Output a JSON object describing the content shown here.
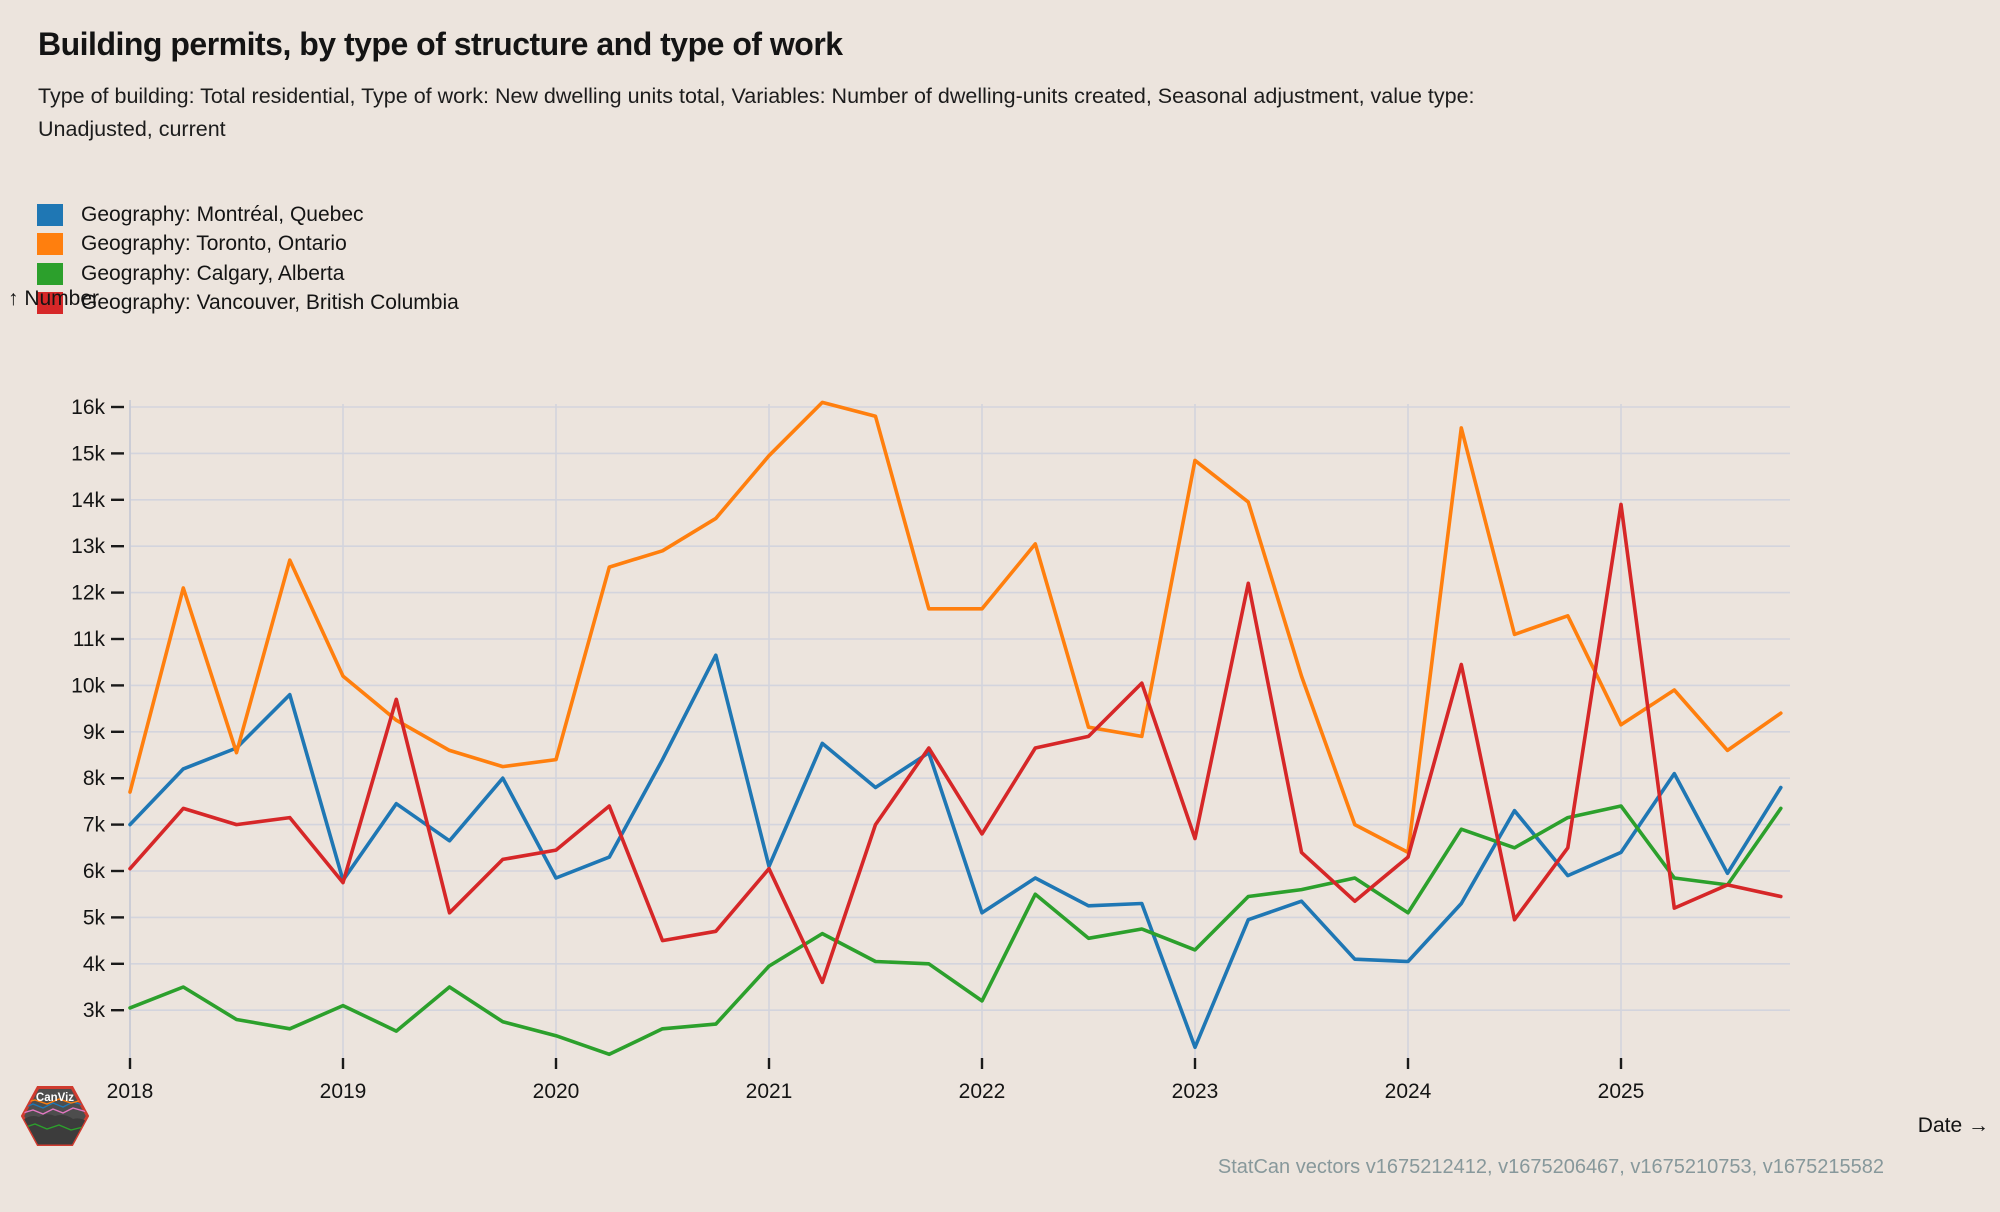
{
  "header": {
    "title": "Building permits, by type of structure and type of work",
    "subtitle_line1": "Type of building: Total residential, Type of work: New dwelling units total, Variables: Number of dwelling-units created, Seasonal adjustment, value type:",
    "subtitle_line2": "Unadjusted, current"
  },
  "legend": {
    "items": [
      {
        "label": "Geography: Montréal, Quebec",
        "color": "#1f77b4"
      },
      {
        "label": "Geography: Toronto, Ontario",
        "color": "#ff7f0e"
      },
      {
        "label": "Geography: Calgary, Alberta",
        "color": "#2ca02c"
      },
      {
        "label": "Geography: Vancouver, British Columbia",
        "color": "#d62728"
      }
    ]
  },
  "chart_data": {
    "type": "line",
    "title": "Building permits, by type of structure and type of work",
    "ylabel": "↑ Number",
    "xlabel": "Date →",
    "grid": true,
    "legend_position": "top-left",
    "ylim": [
      2000,
      16400
    ],
    "y_ticks": [
      "16k",
      "15k",
      "14k",
      "13k",
      "12k",
      "11k",
      "10k",
      "9k",
      "8k",
      "7k",
      "6k",
      "5k",
      "4k",
      "3k"
    ],
    "x_tick_years": [
      "2018",
      "2019",
      "2020",
      "2021",
      "2022",
      "2023",
      "2024",
      "2025"
    ],
    "quarters": [
      "2018 Q1",
      "2018 Q2",
      "2018 Q3",
      "2018 Q4",
      "2019 Q1",
      "2019 Q2",
      "2019 Q3",
      "2019 Q4",
      "2020 Q1",
      "2020 Q2",
      "2020 Q3",
      "2020 Q4",
      "2021 Q1",
      "2021 Q2",
      "2021 Q3",
      "2021 Q4",
      "2022 Q1",
      "2022 Q2",
      "2022 Q3",
      "2022 Q4",
      "2023 Q1",
      "2023 Q2",
      "2023 Q3",
      "2023 Q4",
      "2024 Q1",
      "2024 Q2",
      "2024 Q3",
      "2024 Q4",
      "2025 Q1",
      "2025 Q2",
      "2025 Q3",
      "2025 Q4"
    ],
    "series": [
      {
        "name": "Montréal, Quebec",
        "color": "#1f77b4",
        "values": [
          7000,
          8200,
          8650,
          9800,
          5800,
          7450,
          6650,
          8000,
          5850,
          6300,
          8400,
          10650,
          6100,
          8750,
          7800,
          8550,
          5100,
          5850,
          5250,
          5300,
          2200,
          4950,
          5350,
          4100,
          4050,
          5300,
          7300,
          5900,
          6400,
          8100,
          5950,
          7800
        ]
      },
      {
        "name": "Toronto, Ontario",
        "color": "#ff7f0e",
        "values": [
          7700,
          12100,
          8550,
          12700,
          10200,
          9250,
          8600,
          8250,
          8400,
          12550,
          12900,
          13600,
          14950,
          16100,
          15800,
          11650,
          11650,
          13050,
          9100,
          8900,
          14850,
          13950,
          10200,
          7000,
          6400,
          15550,
          11100,
          11500,
          9150,
          9900,
          8600,
          9400
        ]
      },
      {
        "name": "Calgary, Alberta",
        "color": "#2ca02c",
        "values": [
          3050,
          3500,
          2800,
          2600,
          3100,
          2550,
          3500,
          2750,
          2450,
          2050,
          2600,
          2700,
          3950,
          4650,
          4050,
          4000,
          3200,
          5500,
          4550,
          4750,
          4300,
          5450,
          5600,
          5850,
          5100,
          6900,
          6500,
          7150,
          7400,
          5850,
          5700,
          7350
        ]
      },
      {
        "name": "Vancouver, British Columbia",
        "color": "#d62728",
        "values": [
          6050,
          7350,
          7000,
          7150,
          5750,
          9700,
          5100,
          6250,
          6450,
          7400,
          4500,
          4700,
          6050,
          3600,
          7000,
          8650,
          6800,
          8650,
          8900,
          10050,
          6700,
          12200,
          6400,
          5350,
          6300,
          10450,
          4950,
          6500,
          13900,
          5200,
          5700,
          5450
        ]
      }
    ]
  },
  "footer": {
    "source": "StatCan vectors v1675212412, v1675206467, v1675210753, v1675215582"
  },
  "logo": {
    "text": "CanViz"
  }
}
